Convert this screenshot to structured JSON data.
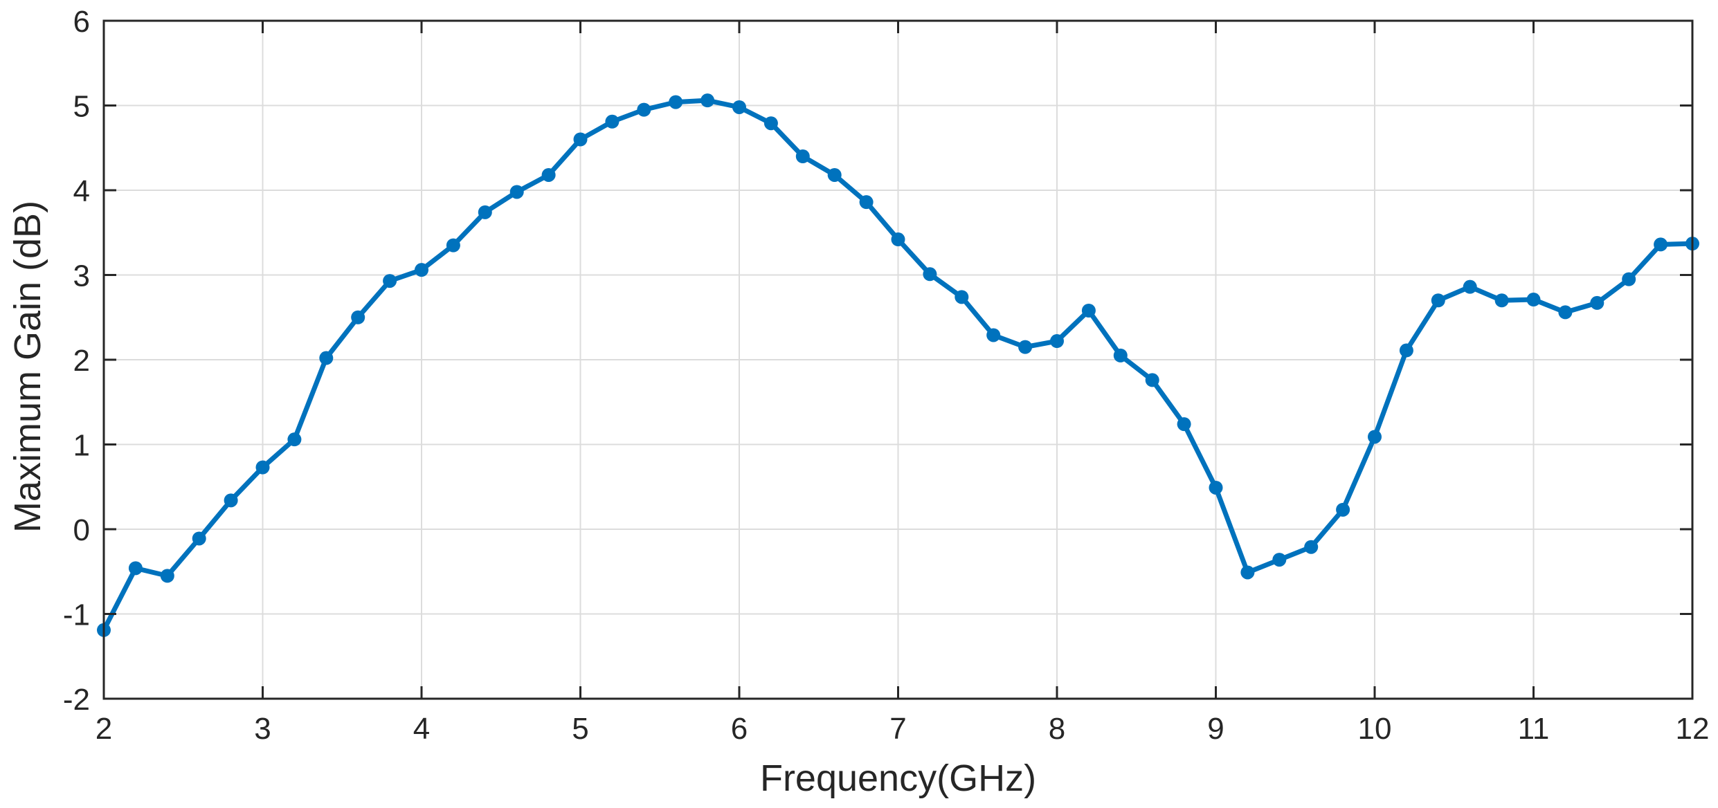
{
  "chart_data": {
    "type": "line",
    "title": "",
    "xlabel": "Frequency(GHz)",
    "ylabel": "Maximum Gain (dB)",
    "xlim": [
      2,
      12
    ],
    "ylim": [
      -2,
      6
    ],
    "xticks": [
      "2",
      "3",
      "4",
      "5",
      "6",
      "7",
      "8",
      "9",
      "10",
      "11",
      "12"
    ],
    "yticks": [
      "-2",
      "-1",
      "0",
      "1",
      "2",
      "3",
      "4",
      "5",
      "6"
    ],
    "grid": true,
    "line_color": "#0072BD",
    "series": [
      {
        "x": [
          2.0,
          2.2,
          2.4,
          2.6,
          2.8,
          3.0,
          3.2,
          3.4,
          3.6,
          3.8,
          4.0,
          4.2,
          4.4,
          4.6,
          4.8,
          5.0,
          5.2,
          5.4,
          5.6,
          5.8,
          6.0,
          6.2,
          6.4,
          6.6,
          6.8,
          7.0,
          7.2,
          7.4,
          7.6,
          7.8,
          8.0,
          8.2,
          8.4,
          8.6,
          8.8,
          9.0,
          9.2,
          9.4,
          9.6,
          9.8,
          10.0,
          10.2,
          10.4,
          10.6,
          10.8,
          11.0,
          11.2,
          11.4,
          11.6,
          11.8,
          12.0
        ],
        "y": [
          -1.19,
          -0.46,
          -0.55,
          -0.11,
          0.34,
          0.73,
          1.06,
          2.02,
          2.5,
          2.93,
          3.06,
          3.35,
          3.74,
          3.98,
          4.18,
          4.6,
          4.81,
          4.95,
          5.04,
          5.06,
          4.98,
          4.79,
          4.4,
          4.18,
          3.86,
          3.42,
          3.01,
          2.74,
          2.29,
          2.15,
          2.22,
          2.58,
          2.05,
          1.76,
          1.24,
          0.49,
          -0.51,
          -0.36,
          -0.21,
          0.23,
          1.09,
          2.11,
          2.7,
          2.86,
          2.7,
          2.71,
          2.56,
          2.67,
          2.95,
          3.36,
          3.37
        ]
      }
    ]
  }
}
